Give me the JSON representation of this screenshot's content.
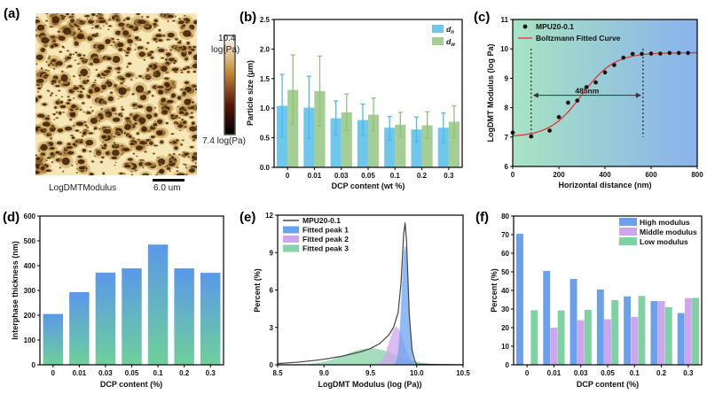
{
  "panel_labels": [
    "(a)",
    "(b)",
    "(c)",
    "(d)",
    "(e)",
    "(f)"
  ],
  "afm_image": {
    "channel_label": "LogDMTModulus",
    "scale_bar_label": "6.0 um",
    "colorbar_max": "10.4",
    "colorbar_max_unit": "log(Pa)",
    "colorbar_min": "7.4 log(Pa)",
    "colors": {
      "light": "#f6e7b8",
      "mid": "#c8a055",
      "dark": "#3a1a05"
    }
  },
  "chart_data": [
    {
      "panel": "b",
      "type": "bar",
      "xlabel": "DCP content (wt %)",
      "ylabel": "Particle size (μm)",
      "categories": [
        "0",
        "0.01",
        "0.03",
        "0.05",
        "0.1",
        "0.2",
        "0.3"
      ],
      "ylim": [
        0,
        2.5
      ],
      "yticks": [
        "0.0",
        "0.5",
        "1.0",
        "1.5",
        "2.0",
        "2.5"
      ],
      "legend_placement": "top-right",
      "series": [
        {
          "name": "d",
          "sub": "n",
          "color": "#4cb9ea",
          "values": [
            1.04,
            1.01,
            0.83,
            0.8,
            0.67,
            0.64,
            0.67
          ],
          "err_high": [
            1.57,
            1.54,
            1.12,
            1.07,
            0.86,
            0.85,
            0.92
          ],
          "err_low": [
            0.51,
            0.49,
            0.54,
            0.54,
            0.47,
            0.43,
            0.42
          ]
        },
        {
          "name": "d",
          "sub": "w",
          "color": "#8fc27a",
          "values": [
            1.31,
            1.29,
            0.93,
            0.89,
            0.72,
            0.71,
            0.77
          ],
          "err_high": [
            1.9,
            1.88,
            1.24,
            1.17,
            0.93,
            0.94,
            1.04
          ],
          "err_low": [
            0.72,
            0.7,
            0.63,
            0.62,
            0.52,
            0.49,
            0.5
          ]
        }
      ]
    },
    {
      "panel": "c",
      "type": "scatter",
      "xlabel": "Horizontal distance (nm)",
      "ylabel": "LogDMT Modulus (log Pa)",
      "xlim": [
        0,
        800
      ],
      "ylim": [
        6,
        11
      ],
      "xticks": [
        "0",
        "200",
        "400",
        "600",
        "800"
      ],
      "yticks": [
        "6",
        "7",
        "8",
        "9",
        "10",
        "11"
      ],
      "legend_placement": "top-left",
      "background_colors": [
        "#a7e4c3",
        "#89b2ec"
      ],
      "series": [
        {
          "name": "MPU20-0.1",
          "color": "#111111",
          "x": [
            0,
            80,
            160,
            200,
            240,
            280,
            320,
            360,
            400,
            440,
            480,
            520,
            560,
            600,
            640,
            680,
            720,
            760
          ],
          "y": [
            7.15,
            7.02,
            7.22,
            7.68,
            8.17,
            8.24,
            8.7,
            8.86,
            9.2,
            9.45,
            9.7,
            9.83,
            9.83,
            9.84,
            9.84,
            9.86,
            9.86,
            9.86
          ]
        },
        {
          "name": "Boltzmann Fitted Curve",
          "color": "#e8282a",
          "type": "line",
          "boltzmann": {
            "A1": 7.0,
            "A2": 9.87,
            "x0": 300,
            "dx": 70
          }
        }
      ],
      "annotation": {
        "text": "485nm",
        "x_start": 80,
        "x_end": 565,
        "y": 8.42
      }
    },
    {
      "panel": "d",
      "type": "bar",
      "xlabel": "DCP content (%)",
      "ylabel": "Interphase thickness (nm)",
      "categories": [
        "0",
        "0.01",
        "0.03",
        "0.05",
        "0.1",
        "0.2",
        "0.3"
      ],
      "ylim": [
        0,
        600
      ],
      "yticks": [
        "0",
        "100",
        "200",
        "300",
        "400",
        "500",
        "600"
      ],
      "bar_gradient": [
        "#5a98ea",
        "#6fd09a"
      ],
      "values": [
        205,
        293,
        372,
        389,
        485,
        389,
        371
      ]
    },
    {
      "panel": "e",
      "type": "area",
      "xlabel": "LogDMT Modulus (log (Pa))",
      "ylabel": "Percent (%)",
      "xlim": [
        8.5,
        10.5
      ],
      "ylim": [
        0,
        12
      ],
      "xticks": [
        "8.5",
        "9.0",
        "9.5",
        "10.0",
        "10.5"
      ],
      "yticks": [
        "0",
        "3",
        "6",
        "9",
        "12"
      ],
      "legend_placement": "top-left",
      "series": [
        {
          "name": "MPU20-0.1",
          "type": "line",
          "color": "#444444",
          "x": [
            8.5,
            8.7,
            8.9,
            9.0,
            9.2,
            9.4,
            9.5,
            9.6,
            9.7,
            9.75,
            9.8,
            9.83,
            9.86,
            9.875,
            9.89,
            9.92,
            9.95,
            9.98,
            10.0,
            10.5
          ],
          "y": [
            0.1,
            0.2,
            0.35,
            0.45,
            0.7,
            1.05,
            1.3,
            1.7,
            2.4,
            3.0,
            4.2,
            6.5,
            10.5,
            11.4,
            10.0,
            4.0,
            1.2,
            0.3,
            0.05,
            0
          ]
        },
        {
          "name": "Fitted peak 1",
          "color": "#6aa3ef",
          "center": 9.875,
          "amplitude": 9.5,
          "sigma": 0.035
        },
        {
          "name": "Fitted peak 2",
          "color": "#cfa6ee",
          "center": 9.78,
          "amplitude": 3.0,
          "sigma": 0.075
        },
        {
          "name": "Fitted peak 3",
          "color": "#86d3a6",
          "center": 9.5,
          "amplitude": 1.3,
          "sigma": 0.27
        }
      ]
    },
    {
      "panel": "f",
      "type": "bar",
      "xlabel": "DCP content (%)",
      "ylabel": "Percent (%)",
      "categories": [
        "0",
        "0.01",
        "0.03",
        "0.05",
        "0.1",
        "0.2",
        "0.3"
      ],
      "ylim": [
        0,
        80
      ],
      "yticks": [
        "0",
        "10",
        "20",
        "30",
        "40",
        "50",
        "60",
        "70",
        "80"
      ],
      "legend_placement": "top-right",
      "series": [
        {
          "name": "High modulus",
          "color": "#6aa0ec",
          "values": [
            70.5,
            50.5,
            46.2,
            40.5,
            36.8,
            34.3,
            27.8
          ]
        },
        {
          "name": "Middle modulus",
          "color": "#cfa6ee",
          "values": [
            0,
            20.0,
            24.0,
            24.5,
            25.8,
            34.3,
            35.9
          ]
        },
        {
          "name": "Low modulus",
          "color": "#7ed1a0",
          "values": [
            29.3,
            29.2,
            29.6,
            34.8,
            37.0,
            31.0,
            36.0
          ]
        }
      ]
    }
  ]
}
